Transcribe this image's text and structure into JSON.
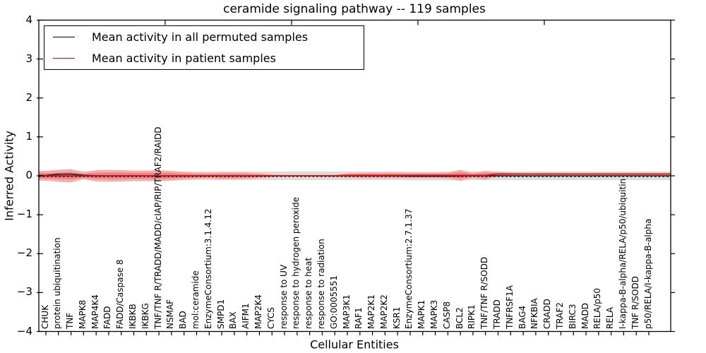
{
  "title": "ceramide signaling pathway -- 119 samples",
  "axes": {
    "ylabel": "Inferred Activity",
    "xlabel": "Cellular Entities"
  },
  "legend": [
    {
      "label": "Mean activity in all permuted samples",
      "color": "#000000"
    },
    {
      "label": "Mean activity in patient samples",
      "color": "#ff0000"
    }
  ],
  "colors": {
    "patient_band_outer": "#f3a9a9",
    "patient_band_inner": "#e87f7f",
    "patient_line": "#dd1111",
    "permuted_band": "#dcdcdc",
    "permuted_line": "#000000",
    "zero_line": "#000000",
    "axis": "#000000"
  },
  "chart_data": {
    "type": "area",
    "title": "ceramide signaling pathway -- 119 samples",
    "xlabel": "Cellular Entities",
    "ylabel": "Inferred Activity",
    "ylim": [
      -4,
      4
    ],
    "ytick_labels": [
      "4",
      "3",
      "2",
      "1",
      "0",
      "−1",
      "−2",
      "−3",
      "−4"
    ],
    "ytick_values": [
      4,
      3,
      2,
      1,
      0,
      -1,
      -2,
      -3,
      -4
    ],
    "grid": false,
    "legend_position": "upper left",
    "categories": [
      "CHUK",
      "protein ubiquitination",
      "TNF",
      "MAPK8",
      "MAP4K4",
      "FADD",
      "FADD/Caspase 8",
      "IKBKB",
      "IKBKG",
      "TNF/TNF R/TRADD/MADD/cIAP/RIP/TRAF2/RAIDD",
      "NSMAF",
      "BAD",
      "mol:ceramide",
      "EnzymeConsortium:3.1.4.12",
      "SMPD1",
      "BAX",
      "AIFM1",
      "MAP2K4",
      "CYCS",
      "response to UV",
      "response to hydrogen peroxide",
      "response to heat",
      "response to radiation",
      "GO:0005551",
      "MAP3K1",
      "RAF1",
      "MAP2K1",
      "MAP2K2",
      "KSR1",
      "EnzymeConsortium:2.7.1.37",
      "MAPK1",
      "MAPK3",
      "CASP8",
      "BCL2",
      "RIPK1",
      "TNF/TNF R/SODD",
      "TRADD",
      "TNFRSF1A",
      "BAG4",
      "NFKBIA",
      "CRADD",
      "TRAF2",
      "BIRC3",
      "MADD",
      "RELA/p50",
      "RELA",
      "I-kappa-B-alpha/RELA/p50/ubiquitin",
      "TNF R/SODD",
      "p50/RELA/I-kappa-B-alpha"
    ],
    "series": [
      {
        "name": "Mean activity in all permuted samples",
        "values": [
          0.01,
          0.04,
          0.045,
          0.015,
          0.005,
          0,
          0,
          0,
          0,
          0,
          0,
          0,
          0,
          0,
          0,
          0,
          0,
          0,
          0,
          0,
          0,
          0,
          0,
          0,
          0,
          0,
          0,
          0,
          0,
          -0.01,
          -0.01,
          -0.01,
          -0.01,
          -0.005,
          0,
          0,
          0,
          0,
          0,
          0,
          0,
          0,
          0,
          0,
          0,
          0,
          0,
          0,
          0
        ]
      },
      {
        "name": "Mean activity in patient samples",
        "values": [
          0,
          0,
          0,
          0,
          0,
          0,
          0,
          0,
          0,
          0,
          0,
          0,
          0,
          0,
          0,
          0,
          0,
          0,
          0,
          0,
          0,
          0,
          0,
          0,
          0.01,
          0.01,
          0.01,
          0.01,
          0.01,
          0.01,
          0.01,
          0.01,
          0.01,
          0.01,
          0.01,
          0.01,
          0.045,
          0.045,
          0.045,
          0.045,
          0.045,
          0.045,
          0.045,
          0.045,
          0.045,
          0.045,
          0.045,
          0.045,
          0.045
        ]
      },
      {
        "name": "patient band outer half-width",
        "values": [
          0.127,
          0.155,
          0.173,
          0.091,
          0.145,
          0.155,
          0.145,
          0.136,
          0.136,
          0.145,
          0.127,
          0.1,
          0.082,
          0.073,
          0.091,
          0.091,
          0.082,
          0.064,
          0.036,
          0.022,
          0.022,
          0.022,
          0.022,
          0.027,
          0.055,
          0.064,
          0.073,
          0.073,
          0.073,
          0.073,
          0.073,
          0.073,
          0.082,
          0.145,
          0.064,
          0.118,
          0.055,
          0.036,
          0.027,
          0.027,
          0.027,
          0.027,
          0.027,
          0.027,
          0.027,
          0.027,
          0.027,
          0.027,
          0.027
        ]
      },
      {
        "name": "patient band inner half-width",
        "values": [
          0.07,
          0.085,
          0.095,
          0.05,
          0.08,
          0.085,
          0.08,
          0.075,
          0.075,
          0.08,
          0.07,
          0.055,
          0.045,
          0.04,
          0.05,
          0.05,
          0.045,
          0.035,
          0.02,
          0.012,
          0.012,
          0.012,
          0.012,
          0.015,
          0.03,
          0.035,
          0.04,
          0.04,
          0.04,
          0.04,
          0.04,
          0.04,
          0.045,
          0.08,
          0.035,
          0.065,
          0.03,
          0.02,
          0.015,
          0.015,
          0.015,
          0.015,
          0.015,
          0.015,
          0.015,
          0.015,
          0.015,
          0.015,
          0.015
        ]
      },
      {
        "name": "permuted band half-width",
        "values": [
          0.11
        ]
      }
    ],
    "zero_reference_line": 0
  }
}
